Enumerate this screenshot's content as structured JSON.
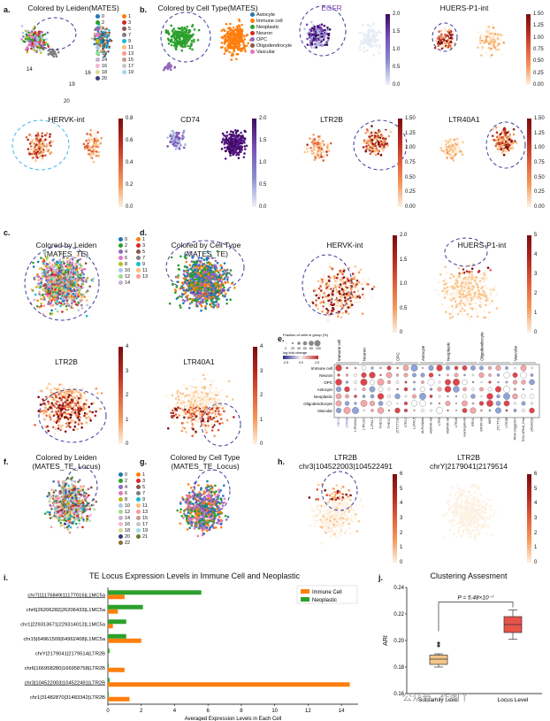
{
  "panel_letters": {
    "a": "a.",
    "b": "b.",
    "c": "c.",
    "d": "d.",
    "e": "e.",
    "f": "f.",
    "g": "g.",
    "h": "h.",
    "i": "i.",
    "j": "j."
  },
  "titles": {
    "a": "Colored by Leiden(MATES)",
    "b": "Colored by Cell Type(MATES)",
    "egfr": "EGFR",
    "huers1": "HUERS-P1-int",
    "hervk1": "HERVK-int",
    "cd74": "CD74",
    "ltr2b1": "LTR2B",
    "ltr40a1_1": "LTR40A1",
    "c": "Colored by Leiden\n(MATES_TE)",
    "d": "Colored by Cell Type\n(MATES_TE)",
    "hervk2": "HERVK-int",
    "huers2": "HUERS-P1-int",
    "ltr2b2": "LTR2B",
    "ltr40a1_2": "LTR40A1",
    "f": "Colored by Leiden\n(MATES_TE_Locus)",
    "g": "Colored by Cell Type\n(MATES_TE_Locus)",
    "h1": "LTR2B\nchr3|104522003|104522491",
    "h2": "LTR2B\nchrY|2179041|2179514",
    "i": "TE Locus Expression Levels in Immune Cell and Neoplastic",
    "j": "Clustering Assesment"
  },
  "celltype_legend": [
    "Astocyte",
    "Immune cell",
    "Neoplastic",
    "Neuron",
    "OPC",
    "Oligodendrocyte",
    "Vascular"
  ],
  "celltype_colors": [
    "#1f77b4",
    "#ff7f0e",
    "#2ca02c",
    "#d62728",
    "#9467bd",
    "#8c564b",
    "#e377c2"
  ],
  "leiden_a": [
    "0",
    "1",
    "2",
    "3",
    "4",
    "5",
    "6",
    "7",
    "8",
    "9",
    "10",
    "11",
    "12",
    "13",
    "14",
    "15",
    "16",
    "17",
    "18",
    "19",
    "20"
  ],
  "leiden_c": [
    "0",
    "1",
    "2",
    "3",
    "4",
    "5",
    "6",
    "7",
    "8",
    "9",
    "10",
    "11",
    "12",
    "13",
    "14"
  ],
  "leiden_f": [
    "0",
    "1",
    "2",
    "3",
    "4",
    "5",
    "6",
    "7",
    "8",
    "9",
    "10",
    "11",
    "12",
    "13",
    "14",
    "15",
    "16",
    "17",
    "18",
    "19",
    "20",
    "21",
    "22"
  ],
  "cluster_labels_a": [
    "14",
    "16",
    "20",
    "19"
  ],
  "colorbars": {
    "egfr": [
      "2.0",
      "1.5",
      "1.0",
      "0.5",
      "0.0"
    ],
    "huers1": [
      "1.50",
      "1.25",
      "1.00",
      "0.75",
      "0.50",
      "0.25",
      "0.00"
    ],
    "hervk1": [
      "0.8",
      "0.6",
      "0.4",
      "0.2",
      "0.0"
    ],
    "cd74": [
      "2.0",
      "1.5",
      "1.0",
      "0.5",
      "0.0"
    ],
    "ltr2b1": [
      "1.50",
      "1.25",
      "1.00",
      "0.75",
      "0.50",
      "0.25",
      "0.00"
    ],
    "ltr40a1_1": [
      "1.50",
      "1.25",
      "1.00",
      "0.75",
      "0.50",
      "0.25",
      "0.00"
    ],
    "hervk2": [
      "2.0",
      "1.5",
      "1.0",
      "0.5",
      "0"
    ],
    "huers2": [
      "5",
      "4",
      "3",
      "2",
      "1",
      "0"
    ],
    "ltr2b2": [
      "4",
      "3",
      "2",
      "1",
      "0"
    ],
    "ltr40a1_2": [
      "4",
      "3",
      "2",
      "1",
      "0"
    ],
    "h1": [
      "6",
      "5",
      "4",
      "3",
      "2",
      "1",
      "0"
    ],
    "h2": [
      "6",
      "5",
      "4",
      "3",
      "2",
      "1",
      "0"
    ]
  },
  "dotplot": {
    "legend_title": "Fraction of cells\nin group (%)",
    "legend_sizes": [
      "0",
      "20",
      "40",
      "60",
      "80",
      "100"
    ],
    "logfc_title": "log fold change",
    "logfc_ticks": [
      "-2.5",
      "0.0",
      "2.5"
    ],
    "groups": [
      "Immune cell",
      "Neuron",
      "OPC",
      "Astocyte",
      "Neoplastic",
      "Oligodendrocyte",
      "Vascular"
    ],
    "genes": [
      "CD74",
      "LTR2B",
      "LTR40A1",
      "LTR12C",
      "L1PA17",
      "THE1C",
      "THE1C",
      "(CTCTC)n",
      "LTR12",
      "L1PA15",
      "ALR/Alpha",
      "HERVK-int",
      "LTR5",
      "HERVK-int",
      "LTR28",
      "Harlequin-int",
      "ERVL",
      "ERVK-int",
      "MIR",
      "(TCTT)n",
      "LTR3B",
      "RNA-GiggGSY",
      "SSU-rRNA_Hsa",
      "(AGAG)n"
    ]
  },
  "chart_data": [
    {
      "type": "bar",
      "title": "TE Locus Expression Levels in Immune Cell and Neoplastic",
      "xlabel": "Averaged Expression Levels in Each Cell",
      "ylabel": "",
      "xlim": [
        0,
        15
      ],
      "xticks": [
        "0",
        "2",
        "4",
        "6",
        "8",
        "10",
        "12",
        "14"
      ],
      "categories": [
        "chr7|11176849|11177016|L1MC5a",
        "chr6|26206282|26206433|L1MC5a",
        "chr1|229313671|229314012|L1MC5a",
        "chr15|64961509|64962408|L1MC5a",
        "chrY|2179041|2179514|LTR2B",
        "chr6|166958280|166958758|LTR2B",
        "chr3|104522003|104522491|LTR2B",
        "chr1|31482870|31483342|LTR2B"
      ],
      "series": [
        {
          "name": "Immune Cell",
          "color": "#ff7f0e",
          "values": [
            1.0,
            0.6,
            0.3,
            2.0,
            0.0,
            1.0,
            14.5,
            1.3
          ]
        },
        {
          "name": "Neoplastic",
          "color": "#2ca02c",
          "values": [
            5.6,
            2.1,
            1.1,
            1.1,
            0.1,
            0.05,
            0.1,
            0.05
          ]
        }
      ],
      "legend": "top-right"
    },
    {
      "type": "box",
      "title": "Clustering Assesment",
      "ylabel": "ARI",
      "ylim": [
        0.16,
        0.24
      ],
      "yticks": [
        "0.16",
        "0.18",
        "0.20",
        "0.22",
        "0.24"
      ],
      "categories": [
        "Subfamily Level",
        "Locus Level"
      ],
      "boxes": [
        {
          "q1": 0.182,
          "median": 0.186,
          "q3": 0.189,
          "whisker_low": 0.18,
          "whisker_high": 0.19,
          "outliers": [
            0.196,
            0.198
          ],
          "color": "#f5c58a"
        },
        {
          "q1": 0.206,
          "median": 0.212,
          "q3": 0.218,
          "whisker_low": 0.201,
          "whisker_high": 0.223,
          "outliers": [],
          "color": "#e8534a"
        }
      ],
      "annotation": "P = 5.48×10⁻⁷"
    }
  ],
  "watermark": "公众号 · 作图丫"
}
